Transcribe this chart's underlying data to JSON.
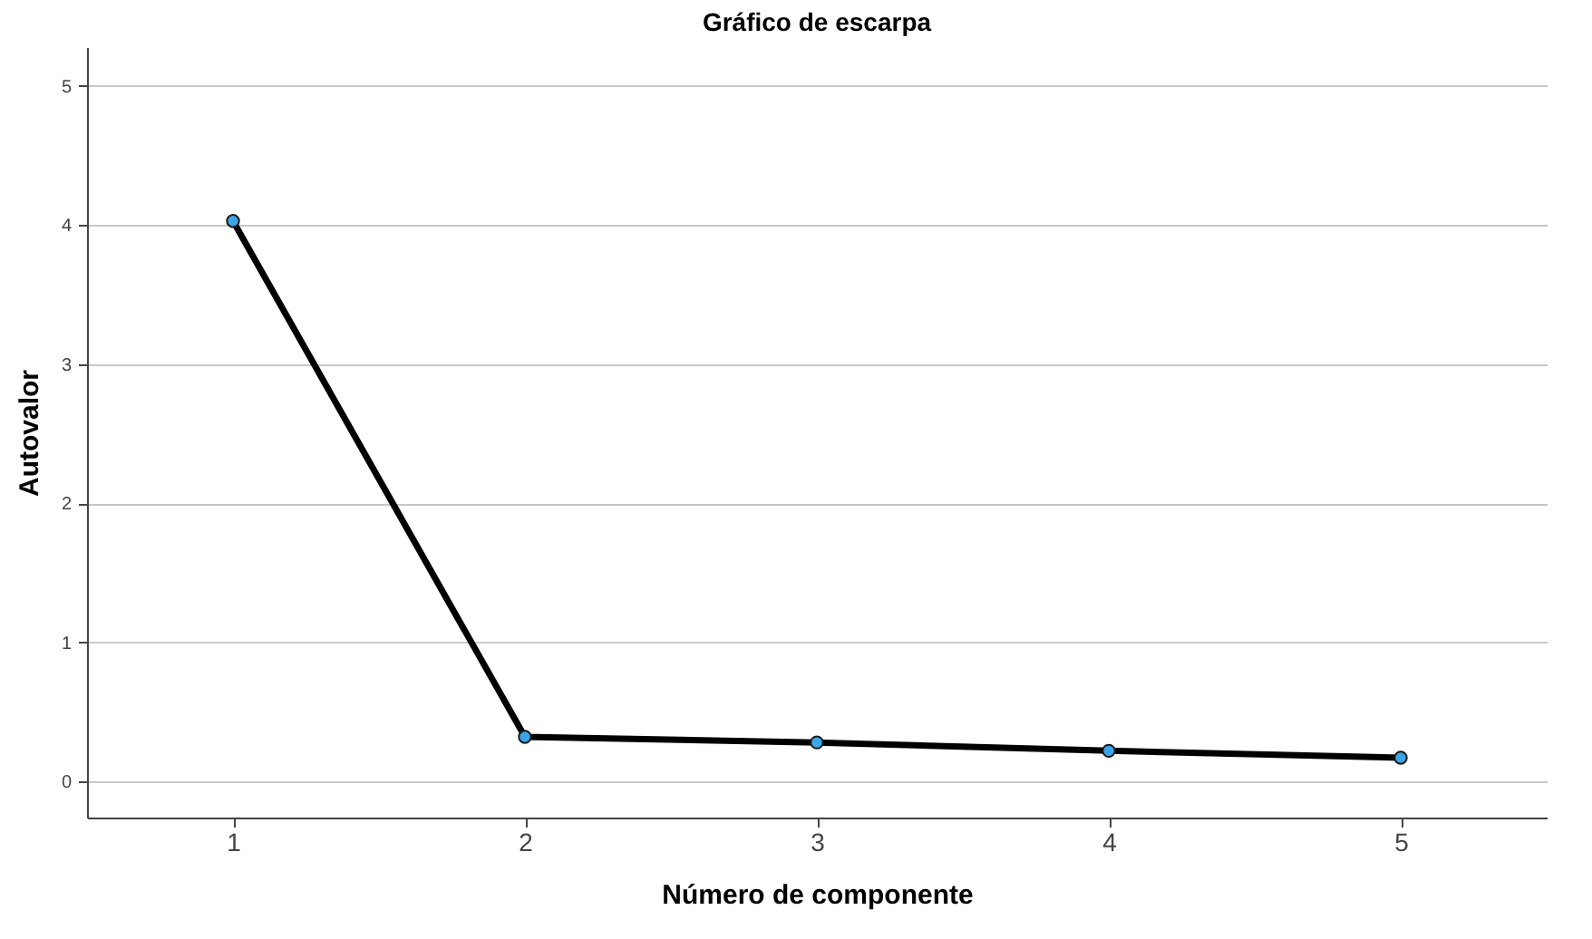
{
  "chart_data": {
    "type": "line",
    "title": "Gráfico de escarpa",
    "xlabel": "Número de componente",
    "ylabel": "Autovalor",
    "categories": [
      "1",
      "2",
      "3",
      "4",
      "5"
    ],
    "series": [
      {
        "color": "#000000",
        "values": [
          4.03,
          0.32,
          0.28,
          0.22,
          0.17
        ]
      }
    ],
    "ylim": [
      -0.26,
      5.28
    ],
    "yticks": [
      0,
      1,
      2,
      3,
      4,
      5
    ],
    "grid": "y",
    "marker": "circle",
    "line_style": "solid",
    "legend": false
  }
}
